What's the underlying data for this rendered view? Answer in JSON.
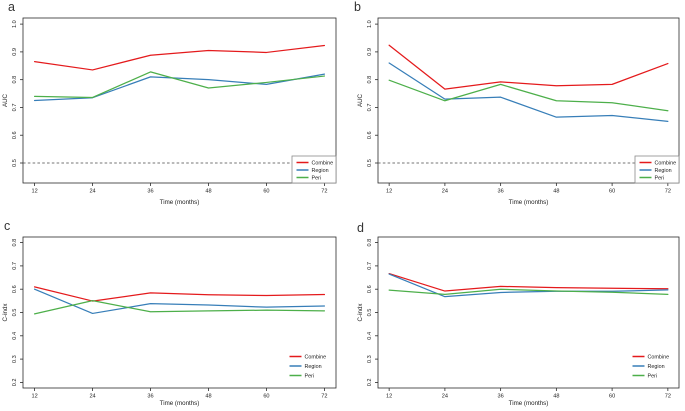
{
  "figure": {
    "background": "#ffffff",
    "axis_color": "#2a2a2a",
    "text_color": "#1c1c1c",
    "ref_line_color": "#4a4a4a"
  },
  "chart_data": [
    {
      "type": "line",
      "panel": "a",
      "title": "",
      "xlabel": "Time (months)",
      "ylabel": "AUC",
      "x": [
        12,
        24,
        36,
        48,
        60,
        72
      ],
      "xticks": [
        12,
        24,
        36,
        48,
        60,
        72
      ],
      "yticks": [
        0.5,
        0.6,
        0.7,
        0.8,
        0.9,
        1.0
      ],
      "xlim": [
        9.6,
        74.4
      ],
      "ylim": [
        0.428,
        1.022
      ],
      "grid": false,
      "ref_line_y": 0.5,
      "legend": {
        "position": "bottom-right",
        "box": true
      },
      "series": [
        {
          "name": "Combine",
          "color": "#E41A1C",
          "values": [
            0.865,
            0.835,
            0.888,
            0.905,
            0.898,
            0.923
          ]
        },
        {
          "name": "Region",
          "color": "#377EB8",
          "values": [
            0.725,
            0.735,
            0.81,
            0.8,
            0.783,
            0.82
          ]
        },
        {
          "name": "Peri",
          "color": "#4DAF4A",
          "values": [
            0.74,
            0.736,
            0.828,
            0.77,
            0.79,
            0.813
          ]
        }
      ]
    },
    {
      "type": "line",
      "panel": "b",
      "title": "",
      "xlabel": "Time (months)",
      "ylabel": "AUC",
      "x": [
        12,
        24,
        36,
        48,
        60,
        72
      ],
      "xticks": [
        12,
        24,
        36,
        48,
        60,
        72
      ],
      "yticks": [
        0.5,
        0.6,
        0.7,
        0.8,
        0.9,
        1.0
      ],
      "xlim": [
        9.6,
        74.4
      ],
      "ylim": [
        0.428,
        1.022
      ],
      "grid": false,
      "ref_line_y": 0.5,
      "legend": {
        "position": "bottom-right",
        "box": true
      },
      "series": [
        {
          "name": "Combine",
          "color": "#E41A1C",
          "values": [
            0.924,
            0.766,
            0.792,
            0.778,
            0.783,
            0.858
          ]
        },
        {
          "name": "Region",
          "color": "#377EB8",
          "values": [
            0.86,
            0.73,
            0.737,
            0.665,
            0.671,
            0.65
          ]
        },
        {
          "name": "Peri",
          "color": "#4DAF4A",
          "values": [
            0.798,
            0.724,
            0.783,
            0.724,
            0.717,
            0.688
          ]
        }
      ]
    },
    {
      "type": "line",
      "panel": "c",
      "title": "",
      "xlabel": "Time (months)",
      "ylabel": "C-indx",
      "x": [
        12,
        24,
        36,
        48,
        60,
        72
      ],
      "xticks": [
        12,
        24,
        36,
        48,
        60,
        72
      ],
      "yticks": [
        0.2,
        0.3,
        0.4,
        0.5,
        0.6,
        0.7,
        0.8
      ],
      "xlim": [
        9.6,
        74.4
      ],
      "ylim": [
        0.176,
        0.824
      ],
      "grid": false,
      "ref_line_y": null,
      "legend": {
        "position": "bottom-right",
        "box": false
      },
      "series": [
        {
          "name": "Combine",
          "color": "#E41A1C",
          "values": [
            0.61,
            0.549,
            0.584,
            0.576,
            0.573,
            0.577
          ]
        },
        {
          "name": "Region",
          "color": "#377EB8",
          "values": [
            0.6,
            0.496,
            0.538,
            0.532,
            0.523,
            0.528
          ]
        },
        {
          "name": "Peri",
          "color": "#4DAF4A",
          "values": [
            0.494,
            0.551,
            0.503,
            0.507,
            0.51,
            0.507
          ]
        }
      ]
    },
    {
      "type": "line",
      "panel": "d",
      "title": "",
      "xlabel": "Time (months)",
      "ylabel": "C-indx",
      "x": [
        12,
        24,
        36,
        48,
        60,
        72
      ],
      "xticks": [
        12,
        24,
        36,
        48,
        60,
        72
      ],
      "yticks": [
        0.2,
        0.3,
        0.4,
        0.5,
        0.6,
        0.7,
        0.8
      ],
      "xlim": [
        9.6,
        74.4
      ],
      "ylim": [
        0.176,
        0.824
      ],
      "grid": false,
      "ref_line_y": null,
      "legend": {
        "position": "bottom-right",
        "box": false
      },
      "series": [
        {
          "name": "Combine",
          "color": "#E41A1C",
          "values": [
            0.667,
            0.592,
            0.612,
            0.607,
            0.604,
            0.602
          ]
        },
        {
          "name": "Region",
          "color": "#377EB8",
          "values": [
            0.665,
            0.568,
            0.586,
            0.591,
            0.591,
            0.597
          ]
        },
        {
          "name": "Peri",
          "color": "#4DAF4A",
          "values": [
            0.596,
            0.578,
            0.6,
            0.592,
            0.587,
            0.578
          ]
        }
      ]
    }
  ]
}
